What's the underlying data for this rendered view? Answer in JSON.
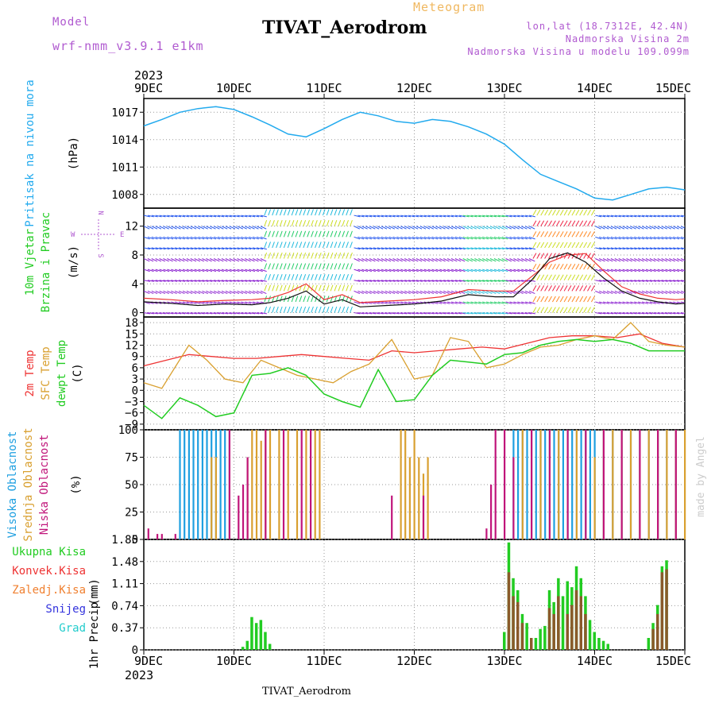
{
  "header": {
    "model_label": "Model",
    "model_name": "wrf-nmm_v3.9.1 e1km",
    "title": "TIVAT_Aerodrom",
    "meteogram": "Meteogram",
    "lonlat": "lon,lat (18.7312E, 42.4N)",
    "altitude": "Nadmorska Visina 2m",
    "model_altitude": "Nadmorska Visina u modelu 109.099m",
    "footer": "TIVAT_Aerodrom",
    "credit": "made by Angel"
  },
  "time_axis": {
    "year": "2023",
    "days": [
      "9DEC",
      "10DEC",
      "11DEC",
      "12DEC",
      "13DEC",
      "14DEC",
      "15DEC"
    ],
    "start": "9DEC 2023",
    "end": "15DEC 2023"
  },
  "colors": {
    "pressure": "#22aaee",
    "temp2m": "#ee3333",
    "sfctemp": "#d9a030",
    "dewpt": "#22cc22",
    "high_cloud": "#1e9fe0",
    "mid_cloud": "#d9a030",
    "low_cloud": "#c0157a",
    "precip_total": "#22cc22",
    "precip_conv": "#8a5a2a",
    "wind_speed": "#111111",
    "wind_gust": "#ee3333"
  },
  "chart_data": [
    {
      "type": "line",
      "panel": "pressure",
      "ylabel_main": "Pritisak na nivou mora",
      "ylabel_unit": "(hPa)",
      "yticks": [
        1008,
        1011,
        1014,
        1017
      ],
      "ylim": [
        1006.5,
        1018.5
      ],
      "series": [
        {
          "name": "Pritisak na nivou mora",
          "x": [
            0,
            0.2,
            0.4,
            0.6,
            0.8,
            1.0,
            1.2,
            1.4,
            1.6,
            1.8,
            2.0,
            2.2,
            2.4,
            2.6,
            2.8,
            3.0,
            3.2,
            3.4,
            3.6,
            3.8,
            4.0,
            4.2,
            4.4,
            4.6,
            4.8,
            5.0,
            5.2,
            5.4,
            5.6,
            5.8,
            6.0
          ],
          "y": [
            1015.5,
            1016.2,
            1017.0,
            1017.4,
            1017.6,
            1017.3,
            1016.5,
            1015.6,
            1014.6,
            1014.3,
            1015.2,
            1016.2,
            1017.0,
            1016.6,
            1016.0,
            1015.8,
            1016.2,
            1016.0,
            1015.4,
            1014.6,
            1013.5,
            1011.8,
            1010.2,
            1009.4,
            1008.6,
            1007.6,
            1007.4,
            1008.0,
            1008.6,
            1008.8,
            1008.5
          ]
        }
      ]
    },
    {
      "type": "line",
      "panel": "wind",
      "ylabel_main": "10m Vjetar",
      "ylabel_main2": "Brzina i Pravac",
      "ylabel_unit": "(m/s)",
      "compass": [
        "N",
        "W",
        "E",
        "S"
      ],
      "yticks": [
        0,
        4,
        8,
        12
      ],
      "ylim": [
        -0.6,
        14.5
      ],
      "series": [
        {
          "name": "speed",
          "x": [
            0,
            0.3,
            0.6,
            0.9,
            1.2,
            1.4,
            1.6,
            1.8,
            2.0,
            2.2,
            2.4,
            2.7,
            3.0,
            3.3,
            3.6,
            3.9,
            4.1,
            4.3,
            4.5,
            4.7,
            4.9,
            5.1,
            5.3,
            5.5,
            5.7,
            5.9,
            6.0
          ],
          "y": [
            1.5,
            1.3,
            1.0,
            1.2,
            1.1,
            1.4,
            2.0,
            3.0,
            1.2,
            1.8,
            0.8,
            1.0,
            1.2,
            1.6,
            2.5,
            2.2,
            2.2,
            4.5,
            7.5,
            8.3,
            7.0,
            4.8,
            3.0,
            2.0,
            1.5,
            1.2,
            1.3
          ]
        },
        {
          "name": "gust",
          "x": [
            0,
            0.3,
            0.6,
            0.9,
            1.2,
            1.4,
            1.6,
            1.8,
            2.0,
            2.2,
            2.4,
            2.7,
            3.0,
            3.3,
            3.6,
            3.9,
            4.1,
            4.3,
            4.5,
            4.7,
            4.9,
            5.1,
            5.3,
            5.5,
            5.7,
            5.9,
            6.0
          ],
          "y": [
            2.0,
            1.8,
            1.5,
            1.7,
            1.8,
            2.0,
            2.8,
            4.0,
            1.8,
            2.5,
            1.4,
            1.6,
            1.8,
            2.2,
            3.2,
            3.0,
            3.0,
            5.0,
            7.0,
            8.0,
            8.2,
            5.8,
            3.6,
            2.6,
            2.0,
            1.8,
            1.9
          ]
        }
      ]
    },
    {
      "type": "line",
      "panel": "temperature",
      "ylabel_main": "2m Temp",
      "ylabel_main2": "SFC Temp",
      "ylabel_main3": "dewpt Temp",
      "ylabel_unit": "(C)",
      "yticks": [
        -9,
        -6,
        -3,
        0,
        3,
        6,
        9,
        12,
        15,
        18
      ],
      "ylim": [
        -10.5,
        19.5
      ],
      "series": [
        {
          "name": "2m Temp",
          "x": [
            0,
            0.25,
            0.5,
            0.75,
            1.0,
            1.25,
            1.5,
            1.75,
            2.0,
            2.25,
            2.5,
            2.75,
            3.0,
            3.25,
            3.5,
            3.75,
            4.0,
            4.25,
            4.5,
            4.75,
            5.0,
            5.25,
            5.5,
            5.75,
            6.0
          ],
          "y": [
            6.5,
            8.0,
            9.5,
            9.0,
            8.5,
            8.5,
            9.0,
            9.5,
            9.0,
            8.5,
            8.0,
            10.5,
            10.0,
            10.5,
            11.0,
            11.5,
            11.0,
            12.5,
            14.0,
            14.5,
            14.5,
            14.0,
            15.0,
            12.5,
            11.5
          ]
        },
        {
          "name": "SFC Temp",
          "x": [
            0,
            0.2,
            0.5,
            0.7,
            0.9,
            1.1,
            1.3,
            1.5,
            1.7,
            1.9,
            2.1,
            2.3,
            2.5,
            2.75,
            3.0,
            3.2,
            3.4,
            3.6,
            3.8,
            4.0,
            4.2,
            4.4,
            4.6,
            4.8,
            5.0,
            5.2,
            5.4,
            5.6,
            5.8,
            6.0
          ],
          "y": [
            2.0,
            0.5,
            12.0,
            8.0,
            3.0,
            2.0,
            8.0,
            6.0,
            4.0,
            3.0,
            2.0,
            5.0,
            7.0,
            13.5,
            3.0,
            4.0,
            14.0,
            13.0,
            6.0,
            7.0,
            9.5,
            11.5,
            12.0,
            13.5,
            14.5,
            13.5,
            18.0,
            13.0,
            12.0,
            11.5
          ]
        },
        {
          "name": "dewpt Temp",
          "x": [
            0,
            0.2,
            0.4,
            0.6,
            0.8,
            1.0,
            1.2,
            1.4,
            1.6,
            1.8,
            2.0,
            2.2,
            2.4,
            2.6,
            2.8,
            3.0,
            3.2,
            3.4,
            3.6,
            3.8,
            4.0,
            4.2,
            4.4,
            4.6,
            4.8,
            5.0,
            5.2,
            5.4,
            5.6,
            5.8,
            6.0
          ],
          "y": [
            -4.0,
            -7.5,
            -2.0,
            -4.0,
            -7.0,
            -6.0,
            4.0,
            4.5,
            6.0,
            4.0,
            -1.0,
            -3.0,
            -4.5,
            5.5,
            -3.0,
            -2.5,
            4.0,
            8.0,
            7.5,
            7.0,
            9.5,
            10.0,
            12.0,
            13.0,
            13.5,
            13.0,
            13.5,
            12.5,
            10.5,
            10.5,
            10.5
          ]
        }
      ]
    },
    {
      "type": "bar",
      "panel": "clouds",
      "ylabel_main": "Visoka Oblacnost",
      "ylabel_main2": "Srednja Oblacnost",
      "ylabel_main3": "Niska Oblacnost",
      "ylabel_unit": "(%)",
      "yticks": [
        0,
        25,
        50,
        75,
        100
      ],
      "ylim": [
        0,
        100
      ],
      "series": [
        {
          "name": "Visoka Oblacnost",
          "x": [
            0.4,
            0.45,
            0.5,
            0.55,
            0.6,
            0.65,
            0.7,
            0.75,
            0.8,
            0.85,
            0.9,
            0.95,
            4.1,
            4.15,
            4.2,
            4.25,
            4.3,
            4.35,
            4.4,
            4.45,
            4.5,
            4.55,
            4.6,
            4.65,
            4.7,
            4.75,
            4.8,
            4.85,
            4.9,
            4.95,
            5.0,
            5.1,
            5.2,
            5.3,
            5.4,
            5.5,
            5.6,
            5.7,
            5.8,
            5.9
          ],
          "values": [
            100,
            100,
            100,
            100,
            100,
            100,
            100,
            100,
            100,
            100,
            100,
            100,
            100,
            100,
            100,
            100,
            100,
            100,
            100,
            100,
            100,
            100,
            100,
            100,
            100,
            100,
            100,
            100,
            100,
            100,
            100,
            100,
            100,
            100,
            100,
            100,
            100,
            100,
            100,
            100
          ]
        },
        {
          "name": "Srednja Oblacnost",
          "x": [
            0.75,
            0.8,
            1.15,
            1.2,
            1.25,
            1.3,
            1.35,
            1.4,
            1.5,
            1.6,
            1.7,
            1.8,
            1.9,
            1.95,
            2.85,
            2.9,
            2.95,
            3.0,
            3.05,
            3.1,
            3.15,
            4.2,
            4.4,
            4.6,
            4.8,
            5.0,
            5.1,
            5.2,
            5.3,
            5.4,
            5.5,
            5.6,
            5.7,
            5.8,
            5.9,
            6.0
          ],
          "values": [
            75,
            75,
            75,
            100,
            100,
            90,
            100,
            100,
            100,
            100,
            100,
            100,
            100,
            100,
            100,
            100,
            75,
            100,
            75,
            60,
            75,
            100,
            100,
            100,
            100,
            75,
            100,
            100,
            100,
            100,
            75,
            100,
            100,
            100,
            100,
            100
          ]
        },
        {
          "name": "Niska Oblacnost",
          "x": [
            0.05,
            0.15,
            0.2,
            0.35,
            0.95,
            1.05,
            1.1,
            1.15,
            1.35,
            1.55,
            1.75,
            1.85,
            2.75,
            3.1,
            3.8,
            3.85,
            3.9,
            4.0,
            4.1,
            4.3,
            4.5,
            4.7,
            4.9,
            5.1,
            5.3,
            5.5,
            5.7,
            5.9
          ],
          "values": [
            10,
            5,
            5,
            5,
            100,
            40,
            50,
            75,
            100,
            100,
            100,
            100,
            40,
            40,
            10,
            50,
            100,
            100,
            75,
            100,
            100,
            100,
            100,
            100,
            100,
            100,
            100,
            100
          ]
        }
      ]
    },
    {
      "type": "bar",
      "panel": "precip",
      "legend": [
        "Ukupna Kisa",
        "Konvek.Kisa",
        "Zaledj.Kisa",
        "Snijeg",
        "Grad"
      ],
      "legend_colors": [
        "#22cc22",
        "#ee3333",
        "#f08030",
        "#3333dd",
        "#22cccc"
      ],
      "ylabel_main": "1hr Precip",
      "ylabel_unit": "(mm)",
      "yticks": [
        0,
        0.37,
        0.74,
        1.11,
        1.48,
        1.85
      ],
      "ylim": [
        0,
        1.85
      ],
      "series": [
        {
          "name": "Ukupna Kisa",
          "x": [
            1.1,
            1.15,
            1.2,
            1.25,
            1.3,
            1.35,
            1.4,
            4.0,
            4.05,
            4.1,
            4.15,
            4.2,
            4.25,
            4.3,
            4.35,
            4.4,
            4.45,
            4.5,
            4.55,
            4.6,
            4.65,
            4.7,
            4.75,
            4.8,
            4.85,
            4.9,
            4.95,
            5.0,
            5.05,
            5.1,
            5.15,
            5.6,
            5.65,
            5.7,
            5.75,
            5.8
          ],
          "values": [
            0.05,
            0.15,
            0.55,
            0.45,
            0.5,
            0.3,
            0.1,
            0.3,
            1.8,
            1.2,
            1.0,
            0.6,
            0.45,
            0.1,
            0.2,
            0.35,
            0.4,
            1.0,
            0.8,
            1.2,
            0.9,
            1.15,
            1.05,
            1.4,
            1.2,
            0.9,
            0.5,
            0.3,
            0.2,
            0.15,
            0.1,
            0.2,
            0.45,
            0.75,
            1.4,
            1.5
          ]
        },
        {
          "name": "Konvek.Kisa",
          "x": [
            4.05,
            4.1,
            4.15,
            4.2,
            4.3,
            4.5,
            4.55,
            4.6,
            4.7,
            4.75,
            4.8,
            4.85,
            4.9,
            5.65,
            5.7,
            5.75,
            5.8
          ],
          "values": [
            1.3,
            0.9,
            0.8,
            0.45,
            0.2,
            0.7,
            0.6,
            0.9,
            0.6,
            0.75,
            1.0,
            0.9,
            0.6,
            0.35,
            0.6,
            1.3,
            1.35
          ]
        }
      ]
    }
  ]
}
